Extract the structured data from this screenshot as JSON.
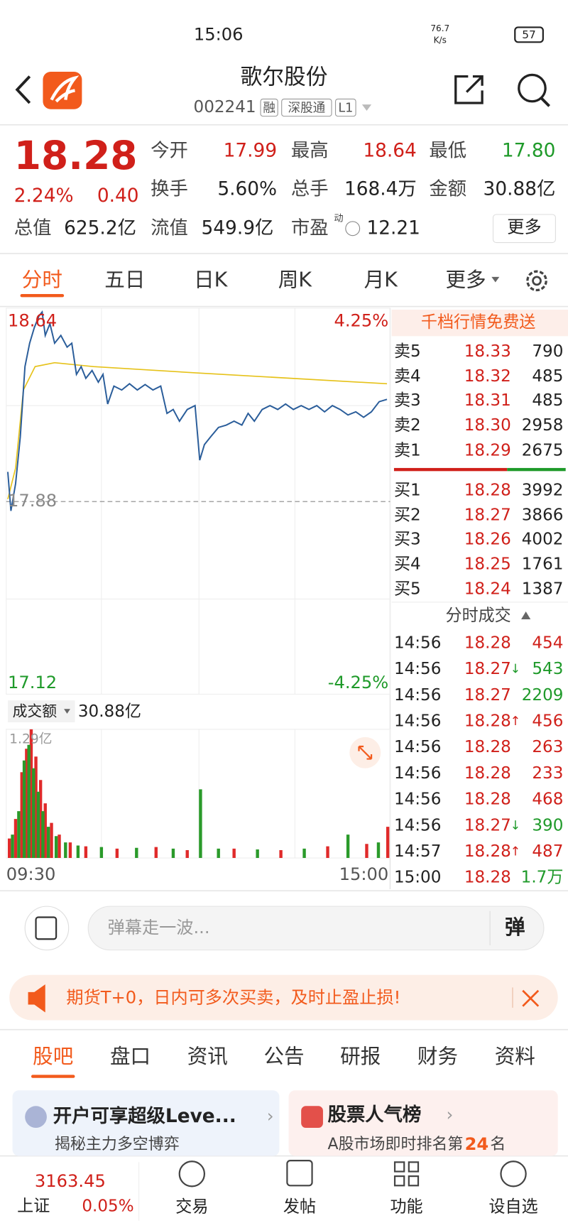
{
  "status": {
    "time": "15:06",
    "net": "76.7",
    "net_unit": "K/s",
    "battery": "57"
  },
  "header": {
    "title": "歌尔股份",
    "code": "002241",
    "tags": [
      "融",
      "深股通",
      "L1"
    ]
  },
  "quote": {
    "price": "18.28",
    "change_pct": "2.24%",
    "change": "0.40",
    "fields": [
      {
        "label": "今开",
        "value": "17.99",
        "color": "#d0201a"
      },
      {
        "label": "最高",
        "value": "18.64",
        "color": "#d0201a"
      },
      {
        "label": "最低",
        "value": "17.80",
        "color": "#1f9a2a"
      },
      {
        "label": "换手",
        "value": "5.60%",
        "color": "#222"
      },
      {
        "label": "总手",
        "value": "168.4万",
        "color": "#222"
      },
      {
        "label": "金额",
        "value": "30.88亿",
        "color": "#222"
      },
      {
        "label": "总值",
        "value": "625.2亿",
        "color": "#222"
      },
      {
        "label": "流值",
        "value": "549.9亿",
        "color": "#222"
      },
      {
        "label": "市盈",
        "sup": "动",
        "value": "12.21",
        "color": "#222"
      }
    ],
    "more": "更多"
  },
  "tabs": [
    "分时",
    "五日",
    "日K",
    "周K",
    "月K",
    "更多"
  ],
  "chart": {
    "top_price": "18.64",
    "top_pct": "4.25%",
    "mid_price": "17.88",
    "bottom_price": "17.12",
    "bottom_pct": "-4.25%",
    "volume_label": "成交额",
    "volume_total": "30.88亿",
    "volume_max": "1.29亿",
    "start": "09:30",
    "end": "15:00"
  },
  "orderbook": {
    "banner": "千档行情免费送",
    "asks": [
      [
        "卖5",
        "18.33",
        "790"
      ],
      [
        "卖4",
        "18.32",
        "485"
      ],
      [
        "卖3",
        "18.31",
        "485"
      ],
      [
        "卖2",
        "18.30",
        "2958"
      ],
      [
        "卖1",
        "18.29",
        "2675"
      ]
    ],
    "bids": [
      [
        "买1",
        "18.28",
        "3992"
      ],
      [
        "买2",
        "18.27",
        "3866"
      ],
      [
        "买3",
        "18.26",
        "4002"
      ],
      [
        "买4",
        "18.25",
        "1761"
      ],
      [
        "买5",
        "18.24",
        "1387"
      ]
    ]
  },
  "trades": {
    "title": "分时成交",
    "rows": [
      {
        "time": "14:56",
        "price": "18.28",
        "volume": "454",
        "color": "#d0201a"
      },
      {
        "time": "14:56",
        "price": "18.27",
        "dir": "↓",
        "volume": "543",
        "color": "#1f9a2a"
      },
      {
        "time": "14:56",
        "price": "18.27",
        "volume": "2209",
        "color": "#1f9a2a"
      },
      {
        "time": "14:56",
        "price": "18.28",
        "dir": "↑",
        "volume": "456",
        "color": "#d0201a"
      },
      {
        "time": "14:56",
        "price": "18.28",
        "volume": "263",
        "color": "#d0201a"
      },
      {
        "time": "14:56",
        "price": "18.28",
        "volume": "233",
        "color": "#d0201a"
      },
      {
        "time": "14:56",
        "price": "18.28",
        "volume": "468",
        "color": "#d0201a"
      },
      {
        "time": "14:56",
        "price": "18.27",
        "dir": "↓",
        "volume": "390",
        "color": "#1f9a2a"
      },
      {
        "time": "14:57",
        "price": "18.28",
        "dir": "↑",
        "volume": "487",
        "color": "#d0201a"
      },
      {
        "time": "15:00",
        "price": "18.28",
        "volume": "1.7万",
        "color": "#1f9a2a"
      }
    ]
  },
  "comment": {
    "placeholder": "弹幕走一波...",
    "button": "弹"
  },
  "ad": "期货T+0，日内可多次买卖，及时止盈止损!",
  "subtabs": [
    "股吧",
    "盘口",
    "资讯",
    "公告",
    "研报",
    "财务",
    "资料"
  ],
  "cards": [
    {
      "title": "开户可享超级Leve...",
      "sub": "揭秘主力多空博弈"
    },
    {
      "title": "股票人气榜",
      "sub": "A股市场即时排名第",
      "rank": "24",
      "sub_end": "名"
    }
  ],
  "nav": {
    "index_value": "3163.45",
    "index_name": "上证",
    "index_pct": "0.05%",
    "items": [
      "交易",
      "发帖",
      "功能",
      "设自选"
    ]
  }
}
